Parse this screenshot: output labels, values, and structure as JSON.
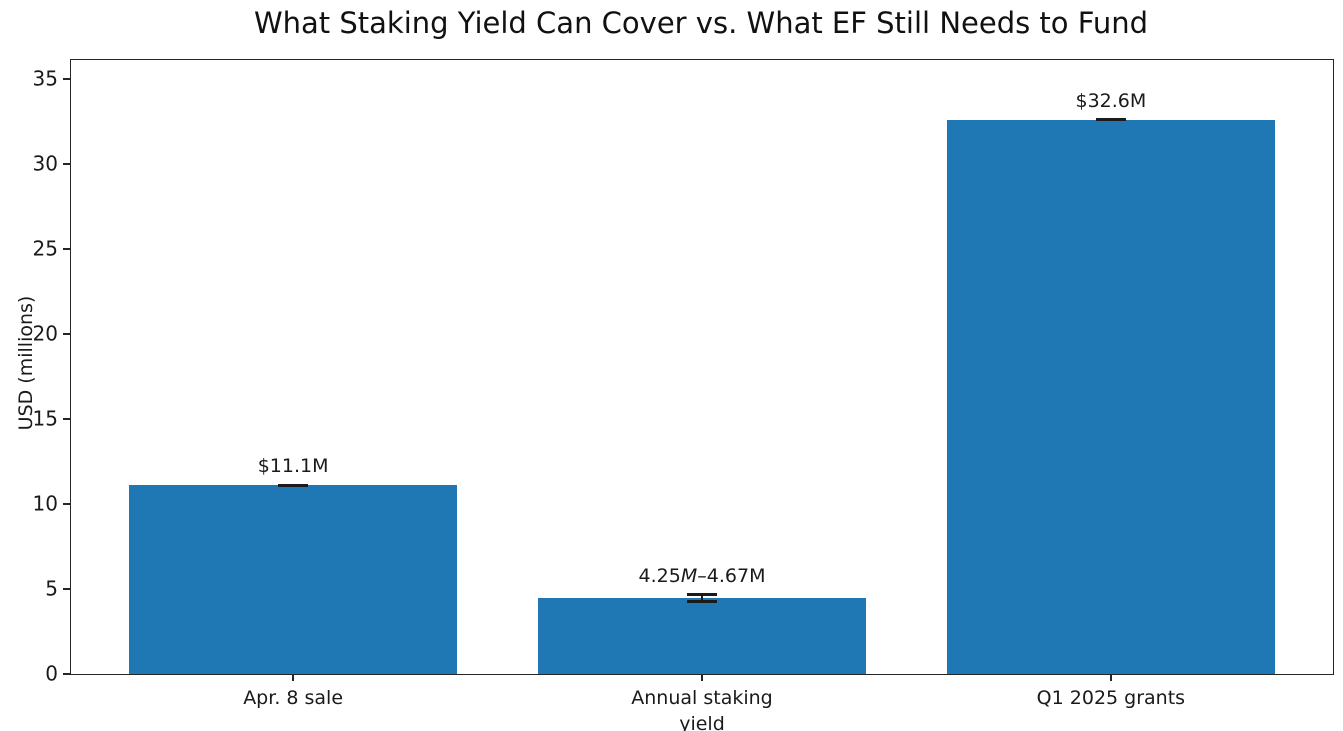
{
  "chart_data": {
    "type": "bar",
    "title": "What Staking Yield Can Cover vs. What EF Still Needs to Fund",
    "xlabel": "",
    "ylabel": "USD (millions)",
    "categories": [
      "Apr. 8 sale",
      "Annual staking\nyield",
      "Q1 2025 grants"
    ],
    "values": [
      11.1,
      4.46,
      32.6
    ],
    "value_labels": [
      [
        {
          "text": "$11.1M",
          "italic": false
        }
      ],
      [
        {
          "text": "4.25",
          "italic": false
        },
        {
          "text": "M",
          "italic": true
        },
        {
          "text": "–4.67M",
          "italic": false
        }
      ],
      [
        {
          "text": "$32.6M",
          "italic": false
        }
      ]
    ],
    "error_ranges": [
      [
        11.1,
        11.1
      ],
      [
        4.25,
        4.67
      ],
      [
        32.6,
        32.6
      ]
    ],
    "yticks": [
      0,
      5,
      10,
      15,
      20,
      25,
      30,
      35
    ],
    "ylim": [
      0,
      36.1
    ],
    "grid": false,
    "legend": null,
    "bar_color": "#1f77b4",
    "axis_color": "#262626",
    "tick_color": "#262626",
    "error_color": "#1a1a1a",
    "layout": {
      "bar_centers_frac": [
        0.176,
        0.5,
        0.824
      ],
      "bar_width_frac": 0.26,
      "legend_position": "none"
    }
  }
}
